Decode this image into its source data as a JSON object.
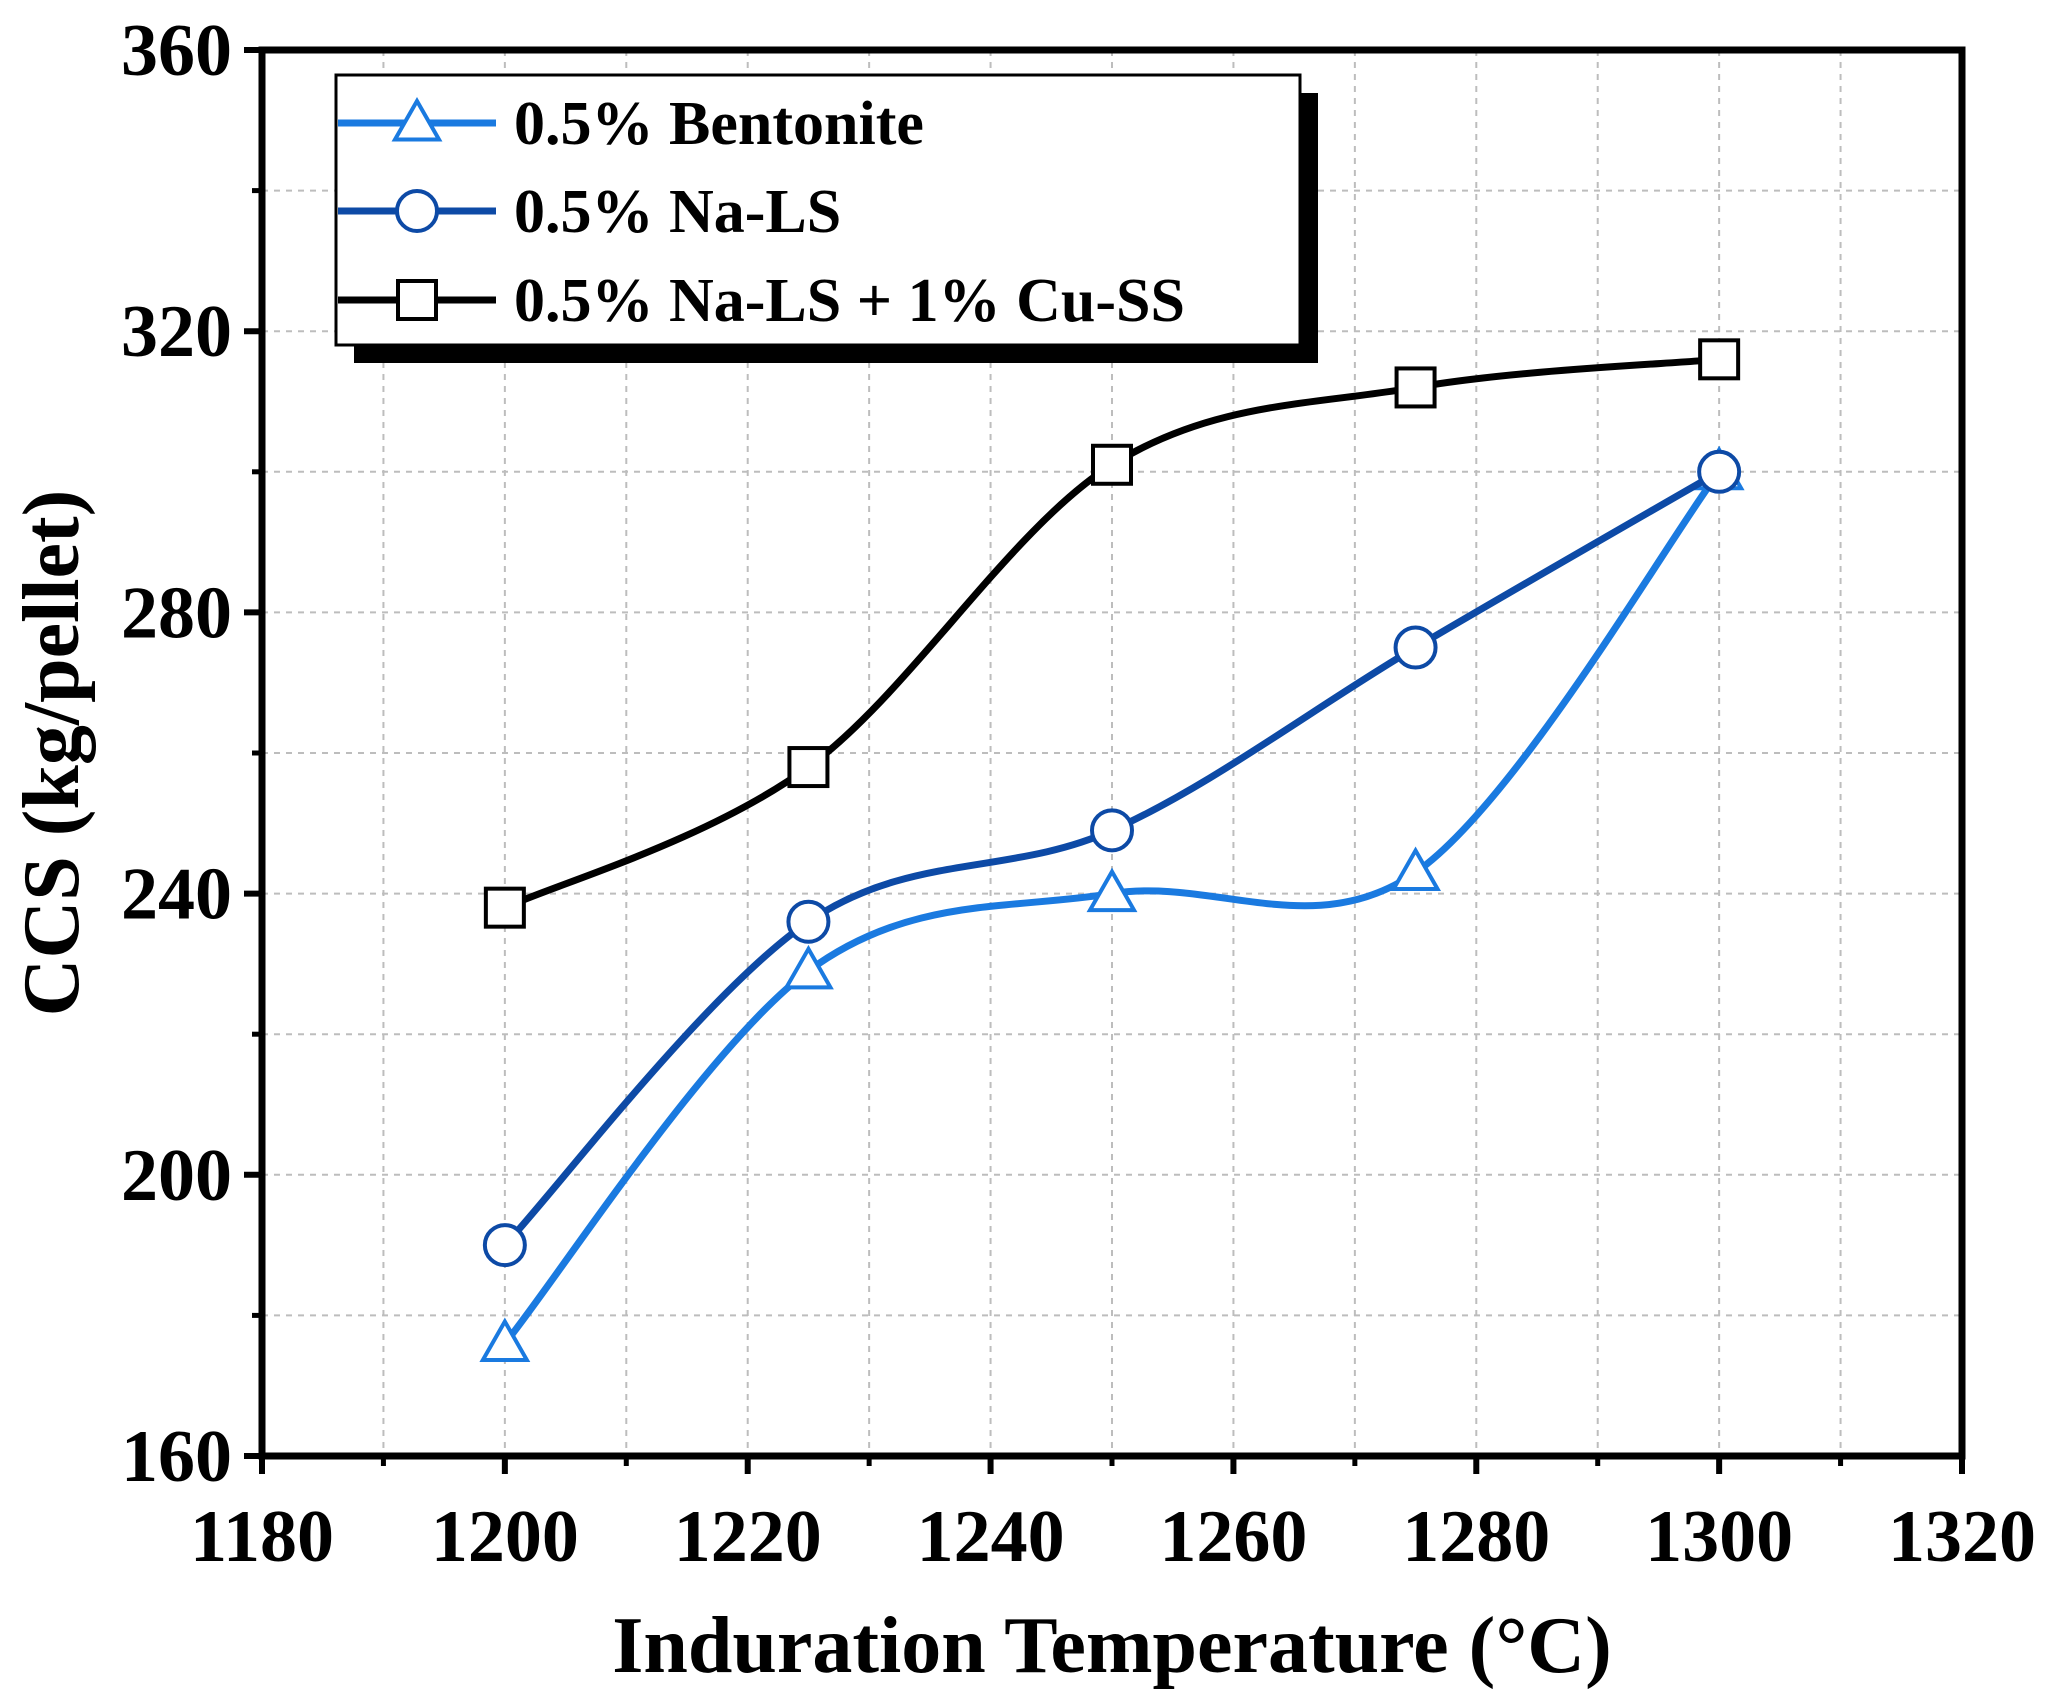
{
  "chart_data": {
    "type": "line",
    "title": "",
    "xlabel": "Induration Temperature (°C)",
    "ylabel": "CCS (kg/pellet)",
    "xlim": [
      1180,
      1320
    ],
    "ylim": [
      160,
      360
    ],
    "xticks": [
      1180,
      1200,
      1220,
      1240,
      1260,
      1280,
      1300,
      1320
    ],
    "yticks": [
      160,
      200,
      240,
      280,
      320,
      360
    ],
    "grid": true,
    "legend_position": "top-left",
    "x": [
      1200,
      1225,
      1250,
      1275,
      1300
    ],
    "series": [
      {
        "name": "0.5% Bentonite",
        "values": [
          176,
          229,
          240,
          243,
          300
        ],
        "color": "#1a7ae0",
        "marker": "triangle"
      },
      {
        "name": "0.5% Na-LS",
        "values": [
          190,
          236,
          249,
          275,
          300
        ],
        "color": "#0d4aa6",
        "marker": "circle"
      },
      {
        "name": "0.5% Na-LS + 1% Cu-SS",
        "values": [
          238,
          258,
          301,
          312,
          316
        ],
        "color": "#000000",
        "marker": "square"
      }
    ]
  }
}
